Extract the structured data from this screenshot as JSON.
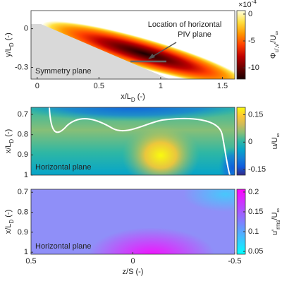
{
  "chart_data": [
    {
      "type": "contour",
      "xlabel": [
        "x/L",
        "D",
        " (-)"
      ],
      "ylabel": [
        "y/L",
        "D",
        " (-)"
      ],
      "xlim": [
        -0.05,
        1.6
      ],
      "xticks": [
        0,
        0.5,
        1,
        1.5
      ],
      "ylim": [
        -0.39,
        0.14
      ],
      "yticks": [
        0,
        -0.3
      ],
      "annotations": [
        "Symmetry plane"
      ],
      "callout": [
        "Location of horizontal",
        "PIV plane"
      ],
      "colorbar": {
        "label": [
          "Φ",
          "u',v'",
          "/U",
          "∞"
        ],
        "scale": [
          "×10",
          "-4"
        ],
        "clim": [
          -12.1,
          0.65
        ],
        "ticks": [
          0,
          -5,
          -10
        ],
        "colormap": [
          "#1a0000",
          "#6b0000",
          "#c00000",
          "#ff4000",
          "#ff9900",
          "#ffe040",
          "#ffffe0"
        ]
      }
    },
    {
      "type": "contour",
      "ylabel": [
        "x/L",
        "D",
        " (-)"
      ],
      "xlim": [
        0.5,
        -0.5
      ],
      "ylim": [
        0.665,
        1
      ],
      "yticks": [
        0.7,
        0.8,
        0.9,
        1
      ],
      "annotations": [
        "Horizontal plane"
      ],
      "colorbar": {
        "label": [
          "u/U",
          "∞"
        ],
        "clim": [
          -0.18,
          0.19
        ],
        "ticks": [
          0.15,
          0,
          -0.15
        ],
        "colormap": [
          "#352a87",
          "#0f5cdd",
          "#1481d6",
          "#06a4ca",
          "#2eb7a4",
          "#87bf77",
          "#d1bb59",
          "#fec832",
          "#f9fb0e"
        ]
      }
    },
    {
      "type": "contour",
      "xlabel": [
        "z/S",
        "",
        " (-)"
      ],
      "ylabel": [
        "x/L",
        "D",
        " (-)"
      ],
      "xlim": [
        0.5,
        -0.5
      ],
      "xticks": [
        0.5,
        0,
        -0.5
      ],
      "ylim": [
        0.685,
        1.01
      ],
      "yticks": [
        0.7,
        0.8,
        0.9,
        1
      ],
      "annotations": [
        "Horizontal plane"
      ],
      "colorbar": {
        "label": [
          "u'",
          "rms",
          "/U",
          "∞"
        ],
        "clim": [
          0.043,
          0.207
        ],
        "ticks": [
          0.2,
          0.15,
          0.1,
          0.05
        ],
        "colormap": [
          "#00ffff",
          "#ff00ff"
        ]
      }
    }
  ]
}
